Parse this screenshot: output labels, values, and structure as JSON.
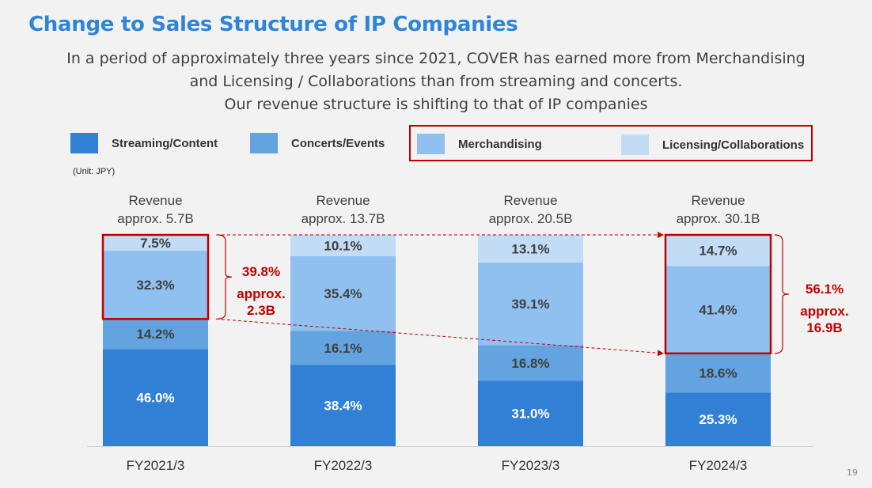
{
  "page": {
    "title": "Change to Sales Structure of IP Companies",
    "subtitle_lines": [
      "In a period of approximately three years since 2021, COVER has earned more from Merchandising",
      "and Licensing / Collaborations than from streaming and concerts.",
      "Our revenue structure is shifting to that of IP companies"
    ],
    "unit": "(Unit: JPY)",
    "page_number": "19"
  },
  "legend": [
    {
      "label": "Streaming/Content",
      "color": "#3180d6",
      "icon": "legend-swatch"
    },
    {
      "label": "Concerts/Events",
      "color": "#62a3e0",
      "icon": "legend-swatch"
    },
    {
      "label": "Merchandising",
      "color": "#8fc0ef",
      "icon": "legend-swatch"
    },
    {
      "label": "Licensing/Collaborations",
      "color": "#c2dcf6",
      "icon": "legend-swatch"
    }
  ],
  "chart_data": {
    "type": "bar",
    "stacked": true,
    "title": "Change to Sales Structure of IP Companies",
    "xlabel": "",
    "ylabel": "",
    "unit": "JPY",
    "ylim": [
      0,
      100
    ],
    "grid": false,
    "legend_position": "top",
    "categories": [
      "FY2021/3",
      "FY2022/3",
      "FY2023/3",
      "FY2024/3"
    ],
    "revenue_labels": [
      [
        "Revenue",
        "approx. 5.7B"
      ],
      [
        "Revenue",
        "approx. 13.7B"
      ],
      [
        "Revenue",
        "approx. 20.5B"
      ],
      [
        "Revenue",
        "approx. 30.1B"
      ]
    ],
    "series": [
      {
        "name": "Streaming/Content",
        "color": "#3180d6",
        "label_color": "#ffffff",
        "values": [
          46.0,
          38.4,
          31.0,
          25.3
        ],
        "labels": [
          "46.0%",
          "38.4%",
          "31.0%",
          "25.3%"
        ]
      },
      {
        "name": "Concerts/Events",
        "color": "#62a3e0",
        "label_color": "#404040",
        "values": [
          14.2,
          16.1,
          16.8,
          18.6
        ],
        "labels": [
          "14.2%",
          "16.1%",
          "16.8%",
          "18.6%"
        ]
      },
      {
        "name": "Merchandising",
        "color": "#8fc0ef",
        "label_color": "#404040",
        "values": [
          32.3,
          35.4,
          39.1,
          41.4
        ],
        "labels": [
          "32.3%",
          "35.4%",
          "39.1%",
          "41.4%"
        ]
      },
      {
        "name": "Licensing/Collaborations",
        "color": "#c2dcf6",
        "label_color": "#404040",
        "values": [
          7.5,
          10.1,
          13.1,
          14.7
        ],
        "labels": [
          "7.5%",
          "10.1%",
          "13.1%",
          "14.7%"
        ]
      }
    ],
    "annotations": [
      {
        "category": "FY2021/3",
        "highlight_series": [
          "Merchandising",
          "Licensing/Collaborations"
        ],
        "share": "39.8%",
        "amount_lines": [
          "approx.",
          "2.3B"
        ]
      },
      {
        "category": "FY2024/3",
        "highlight_series": [
          "Merchandising",
          "Licensing/Collaborations"
        ],
        "share": "56.1%",
        "amount_lines": [
          "approx.",
          "16.9B"
        ]
      }
    ],
    "highlight_color": "#c00000"
  }
}
